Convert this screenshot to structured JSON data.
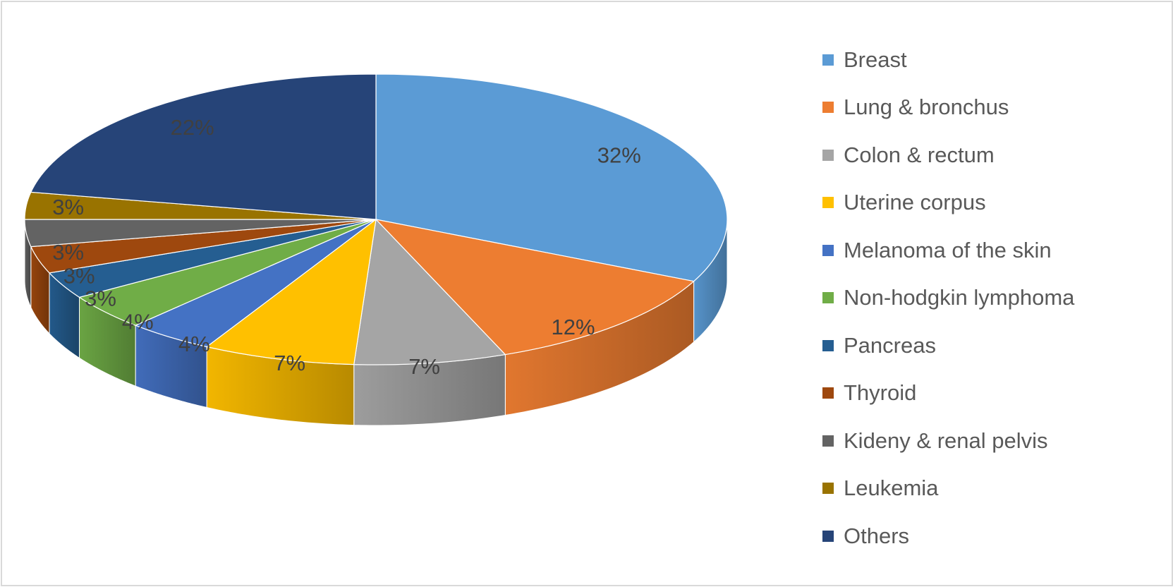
{
  "chart_data": {
    "type": "pie",
    "title": "",
    "style": "3d-exploded-none",
    "legend_position": "right",
    "categories": [
      "Breast",
      "Lung & bronchus",
      "Colon & rectum",
      "Uterine corpus",
      "Melanoma of the skin",
      "Non-hodgkin lymphoma",
      "Pancreas",
      "Thyroid",
      "Kideny & renal pelvis",
      "Leukemia",
      "Others"
    ],
    "values": [
      32,
      12,
      7,
      7,
      4,
      4,
      3,
      3,
      3,
      3,
      22
    ],
    "labels": [
      "32%",
      "12%",
      "7%",
      "7%",
      "4%",
      "4%",
      "3%",
      "3%",
      "3%",
      "3%",
      "22%"
    ],
    "colors": [
      "#5B9BD5",
      "#ED7D31",
      "#A5A5A5",
      "#FFC000",
      "#4472C4",
      "#70AD47",
      "#255E91",
      "#9E480E",
      "#636363",
      "#997300",
      "#264478"
    ]
  }
}
